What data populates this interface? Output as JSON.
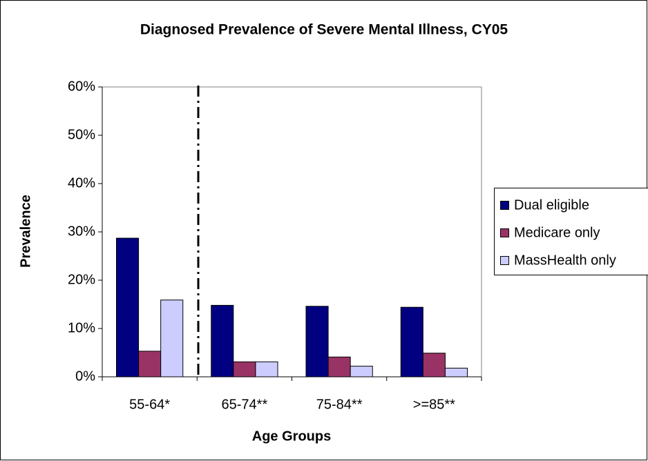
{
  "chart_data": {
    "type": "bar",
    "title": "Diagnosed Prevalence of Severe Mental Illness, CY05",
    "x_label": "Age Groups",
    "y_label": "Prevalence",
    "categories": [
      "55-64*",
      "65-74**",
      "75-84**",
      ">=85**"
    ],
    "series": [
      {
        "name": "Dual eligible",
        "color": "#000080",
        "values": [
          28.7,
          14.8,
          14.6,
          14.4
        ]
      },
      {
        "name": "Medicare only",
        "color": "#993366",
        "values": [
          5.3,
          3.1,
          4.1,
          4.9
        ]
      },
      {
        "name": "MassHealth only",
        "color": "#ccccff",
        "values": [
          15.9,
          3.1,
          2.2,
          1.8
        ]
      }
    ],
    "ylim": [
      0,
      60
    ],
    "yticks": [
      {
        "value": 0,
        "label": "0%"
      },
      {
        "value": 10,
        "label": "10%"
      },
      {
        "value": 20,
        "label": "20%"
      },
      {
        "value": 30,
        "label": "30%"
      },
      {
        "value": 40,
        "label": "40%"
      },
      {
        "value": 50,
        "label": "50%"
      },
      {
        "value": 60,
        "label": "60%"
      }
    ],
    "legend": "right"
  }
}
